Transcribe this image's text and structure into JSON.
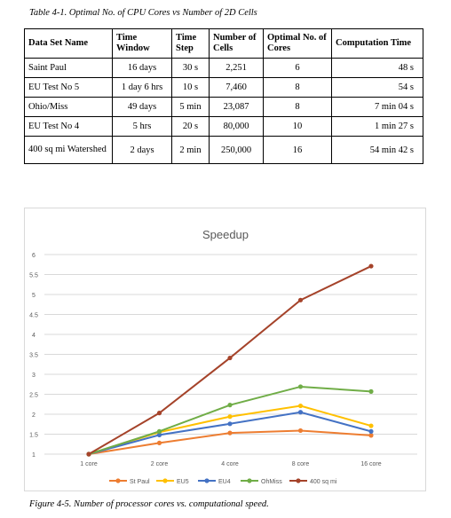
{
  "table_caption": "Table 4-1.  Optimal No. of CPU Cores vs Number of 2D Cells",
  "table": {
    "headers": [
      "Data Set Name",
      "Time Window",
      "Time Step",
      "Number of Cells",
      "Optimal No. of Cores",
      "Computation Time"
    ],
    "rows": [
      [
        "Saint Paul",
        "16 days",
        "30 s",
        "2,251",
        "6",
        "48 s"
      ],
      [
        "EU Test No 5",
        "1 day 6  hrs",
        "10 s",
        "7,460",
        "8",
        "54 s"
      ],
      [
        "Ohio/Miss",
        "49 days",
        "5 min",
        "23,087",
        "8",
        "7 min 04 s"
      ],
      [
        "EU Test No 4",
        "5 hrs",
        "20 s",
        "80,000",
        "10",
        "1 min 27 s"
      ],
      [
        "400 sq mi Watershed",
        "2 days",
        "2 min",
        "250,000",
        "16",
        "54 min 42 s"
      ]
    ]
  },
  "figure_caption": "Figure 4-5.  Number of processor cores vs. computational speed.",
  "chart_data": {
    "type": "line",
    "title": "Speedup",
    "categories": [
      "1 core",
      "2 core",
      "4 core",
      "8 core",
      "16 core"
    ],
    "ylim": [
      1,
      6
    ],
    "yticks": [
      "1",
      "1.5",
      "2",
      "2.5",
      "3",
      "3.5",
      "4",
      "4.5",
      "5",
      "5.5",
      "6"
    ],
    "grid": true,
    "legend_position": "bottom",
    "series": [
      {
        "name": "St Paul",
        "color": "#ed7d31",
        "values": [
          1.0,
          1.28,
          1.53,
          1.59,
          1.47
        ]
      },
      {
        "name": "EU5",
        "color": "#ffc000",
        "values": [
          1.0,
          1.55,
          1.94,
          2.21,
          1.71
        ]
      },
      {
        "name": "EU4",
        "color": "#4472c4",
        "values": [
          1.0,
          1.48,
          1.76,
          2.05,
          1.57
        ]
      },
      {
        "name": "OhMiss",
        "color": "#70ad47",
        "values": [
          1.0,
          1.57,
          2.23,
          2.69,
          2.57
        ]
      },
      {
        "name": "400 sq mi",
        "color": "#a5432a",
        "values": [
          1.0,
          2.03,
          3.41,
          4.86,
          5.71
        ]
      }
    ]
  }
}
